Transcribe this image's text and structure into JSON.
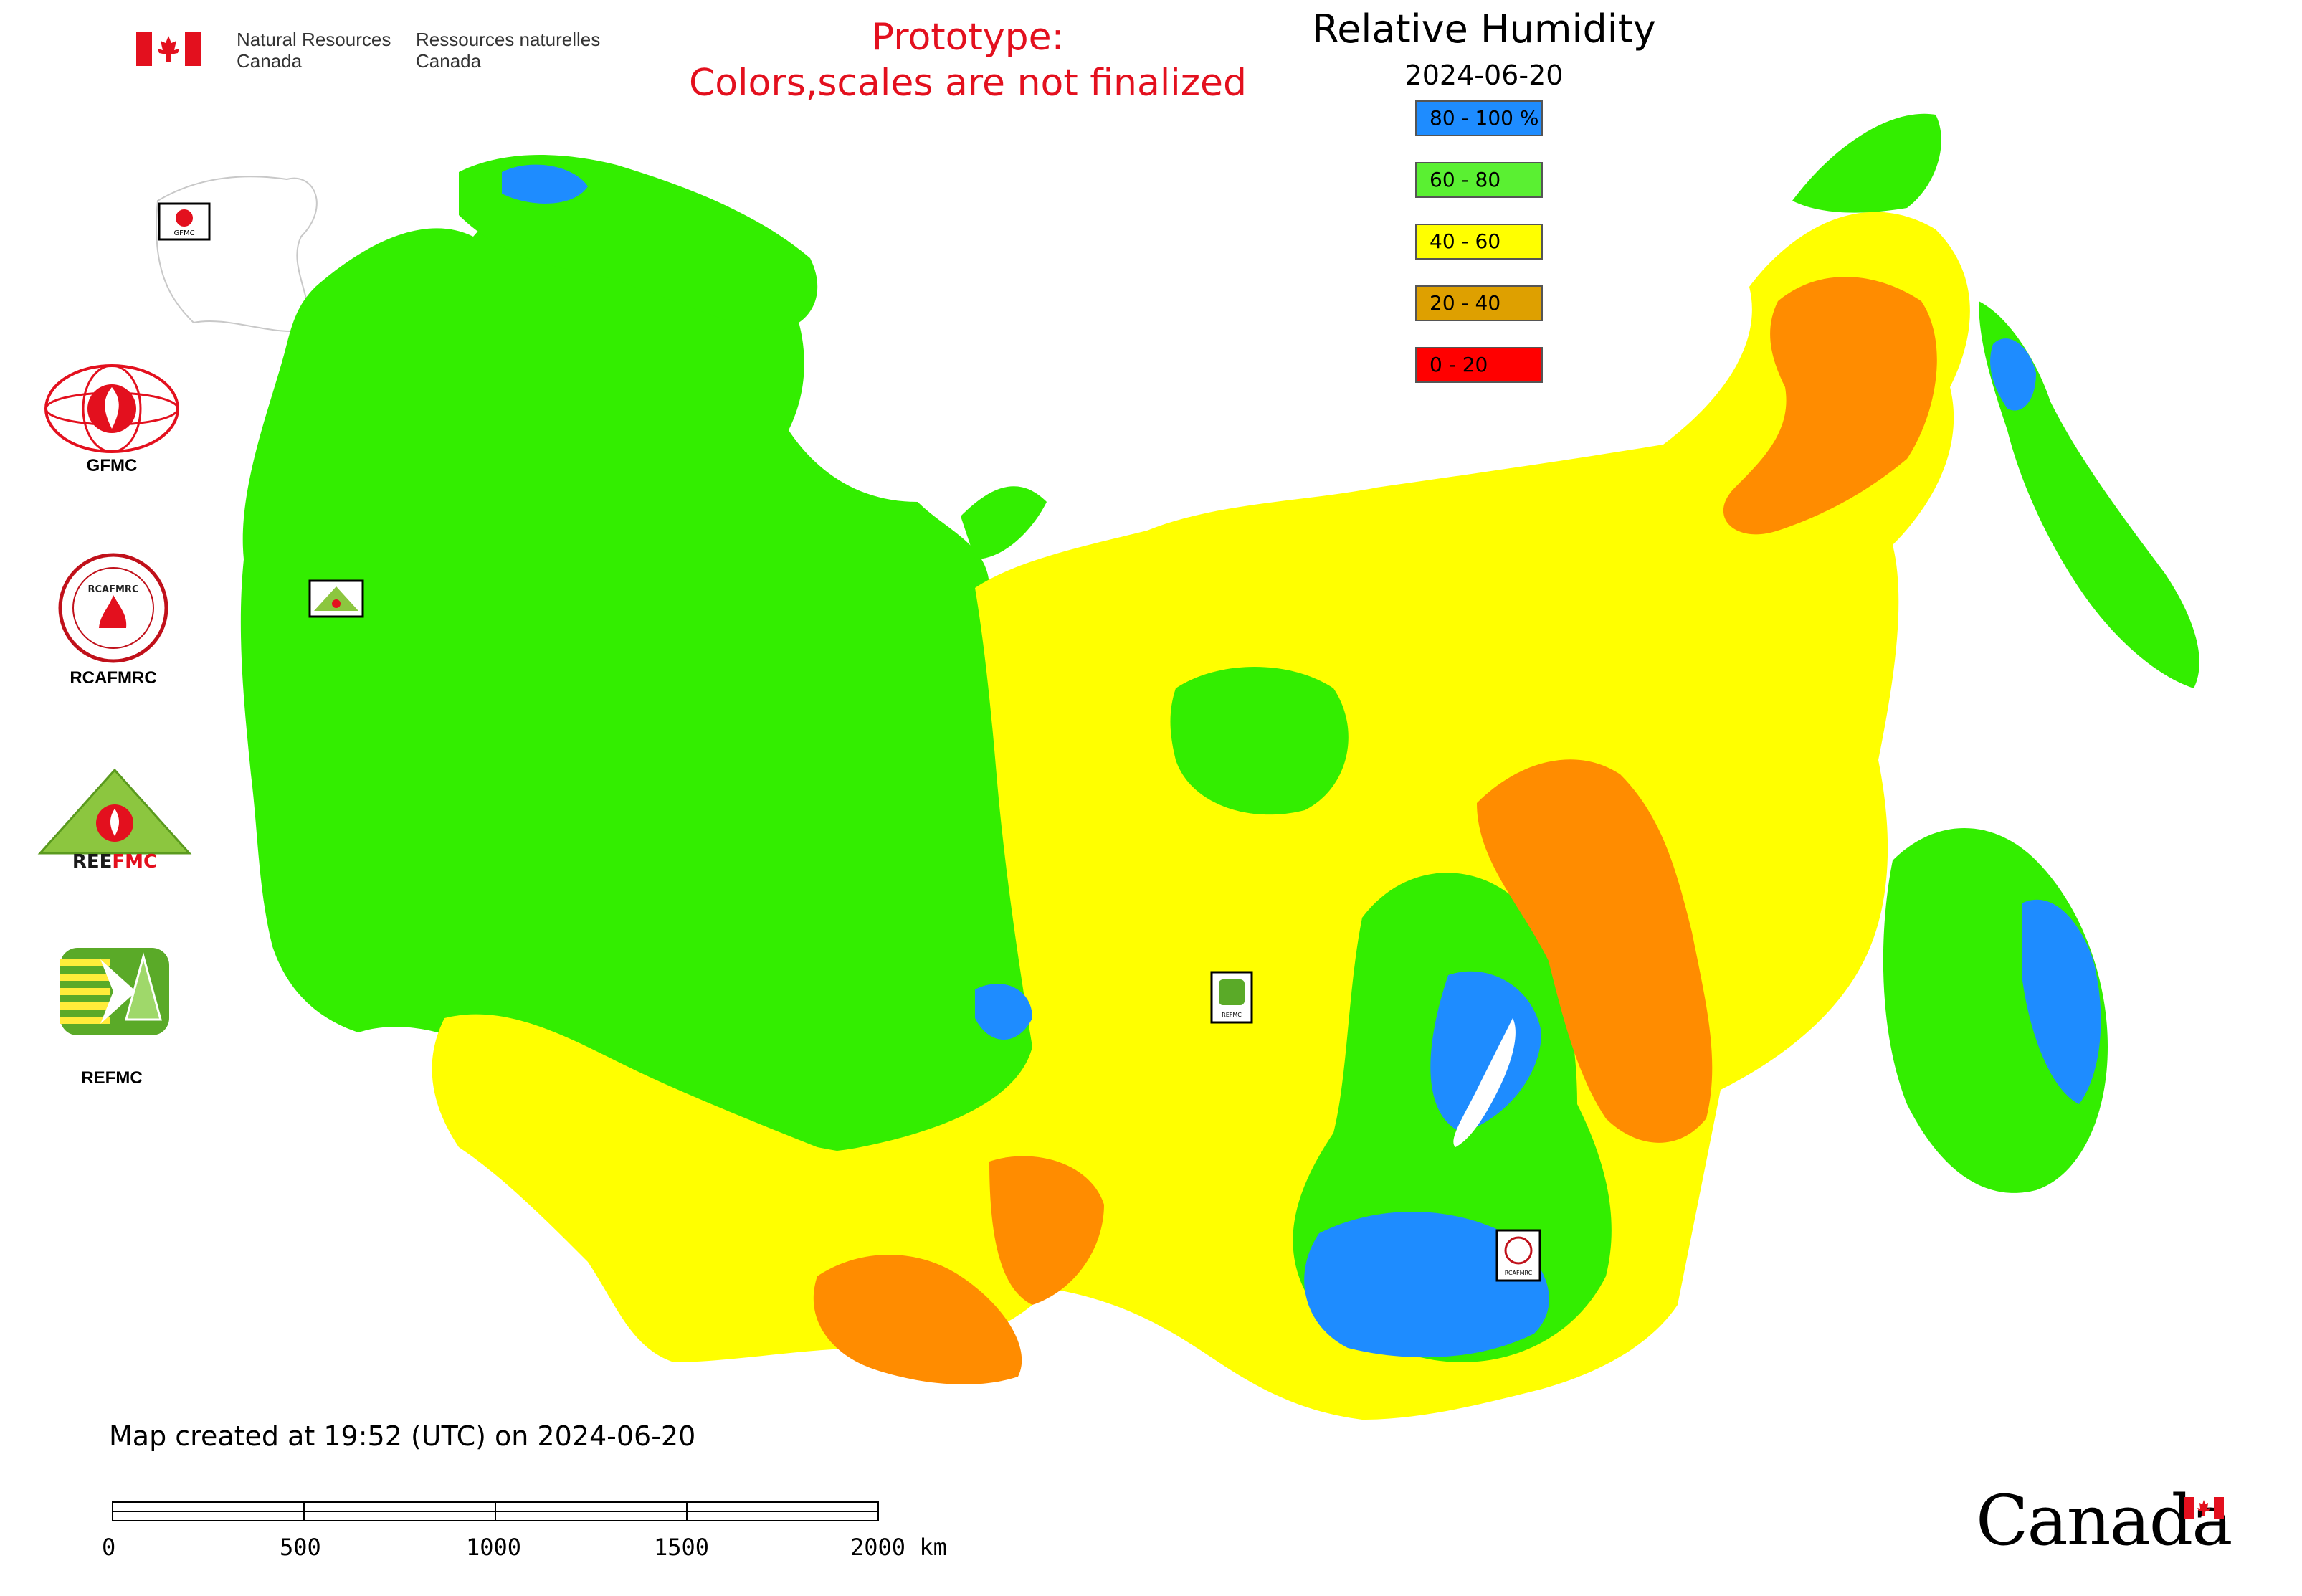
{
  "header": {
    "agency_en_line1": "Natural Resources",
    "agency_en_line2": "Canada",
    "agency_fr_line1": "Ressources naturelles",
    "agency_fr_line2": "Canada",
    "prototype_line1": "Prototype:",
    "prototype_line2": "Colors,scales are not finalized"
  },
  "map": {
    "title": "Relative Humidity",
    "date": "2024-06-20",
    "legend": [
      {
        "label": "80 - 100 %",
        "color": "#1e8cff"
      },
      {
        "label": "60 - 80",
        "color": "#5af032"
      },
      {
        "label": "40 - 60",
        "color": "#ffff00"
      },
      {
        "label": "20 - 40",
        "color": "#dea000"
      },
      {
        "label": "0 - 20",
        "color": "#ff0000"
      }
    ],
    "colors": {
      "green": "#33ee00",
      "yellow": "#ffff00",
      "orange": "#ff8c00",
      "blue": "#1e8cff"
    }
  },
  "logos": [
    {
      "label": "GFMC"
    },
    {
      "label": "RCAFMRC"
    },
    {
      "label": "REEFMC"
    },
    {
      "label": "REFMC"
    }
  ],
  "map_markers": {
    "gfmc_box": "GFMC",
    "refmc_box": "REFMC",
    "rcafmrc_box": "RCAFMRC"
  },
  "footer": {
    "created": "Map created at 19:52 (UTC) on 2024-06-20",
    "scale_ticks": [
      "0",
      "500",
      "1000",
      "1500",
      "2000 km"
    ],
    "wordmark": "Canada"
  }
}
